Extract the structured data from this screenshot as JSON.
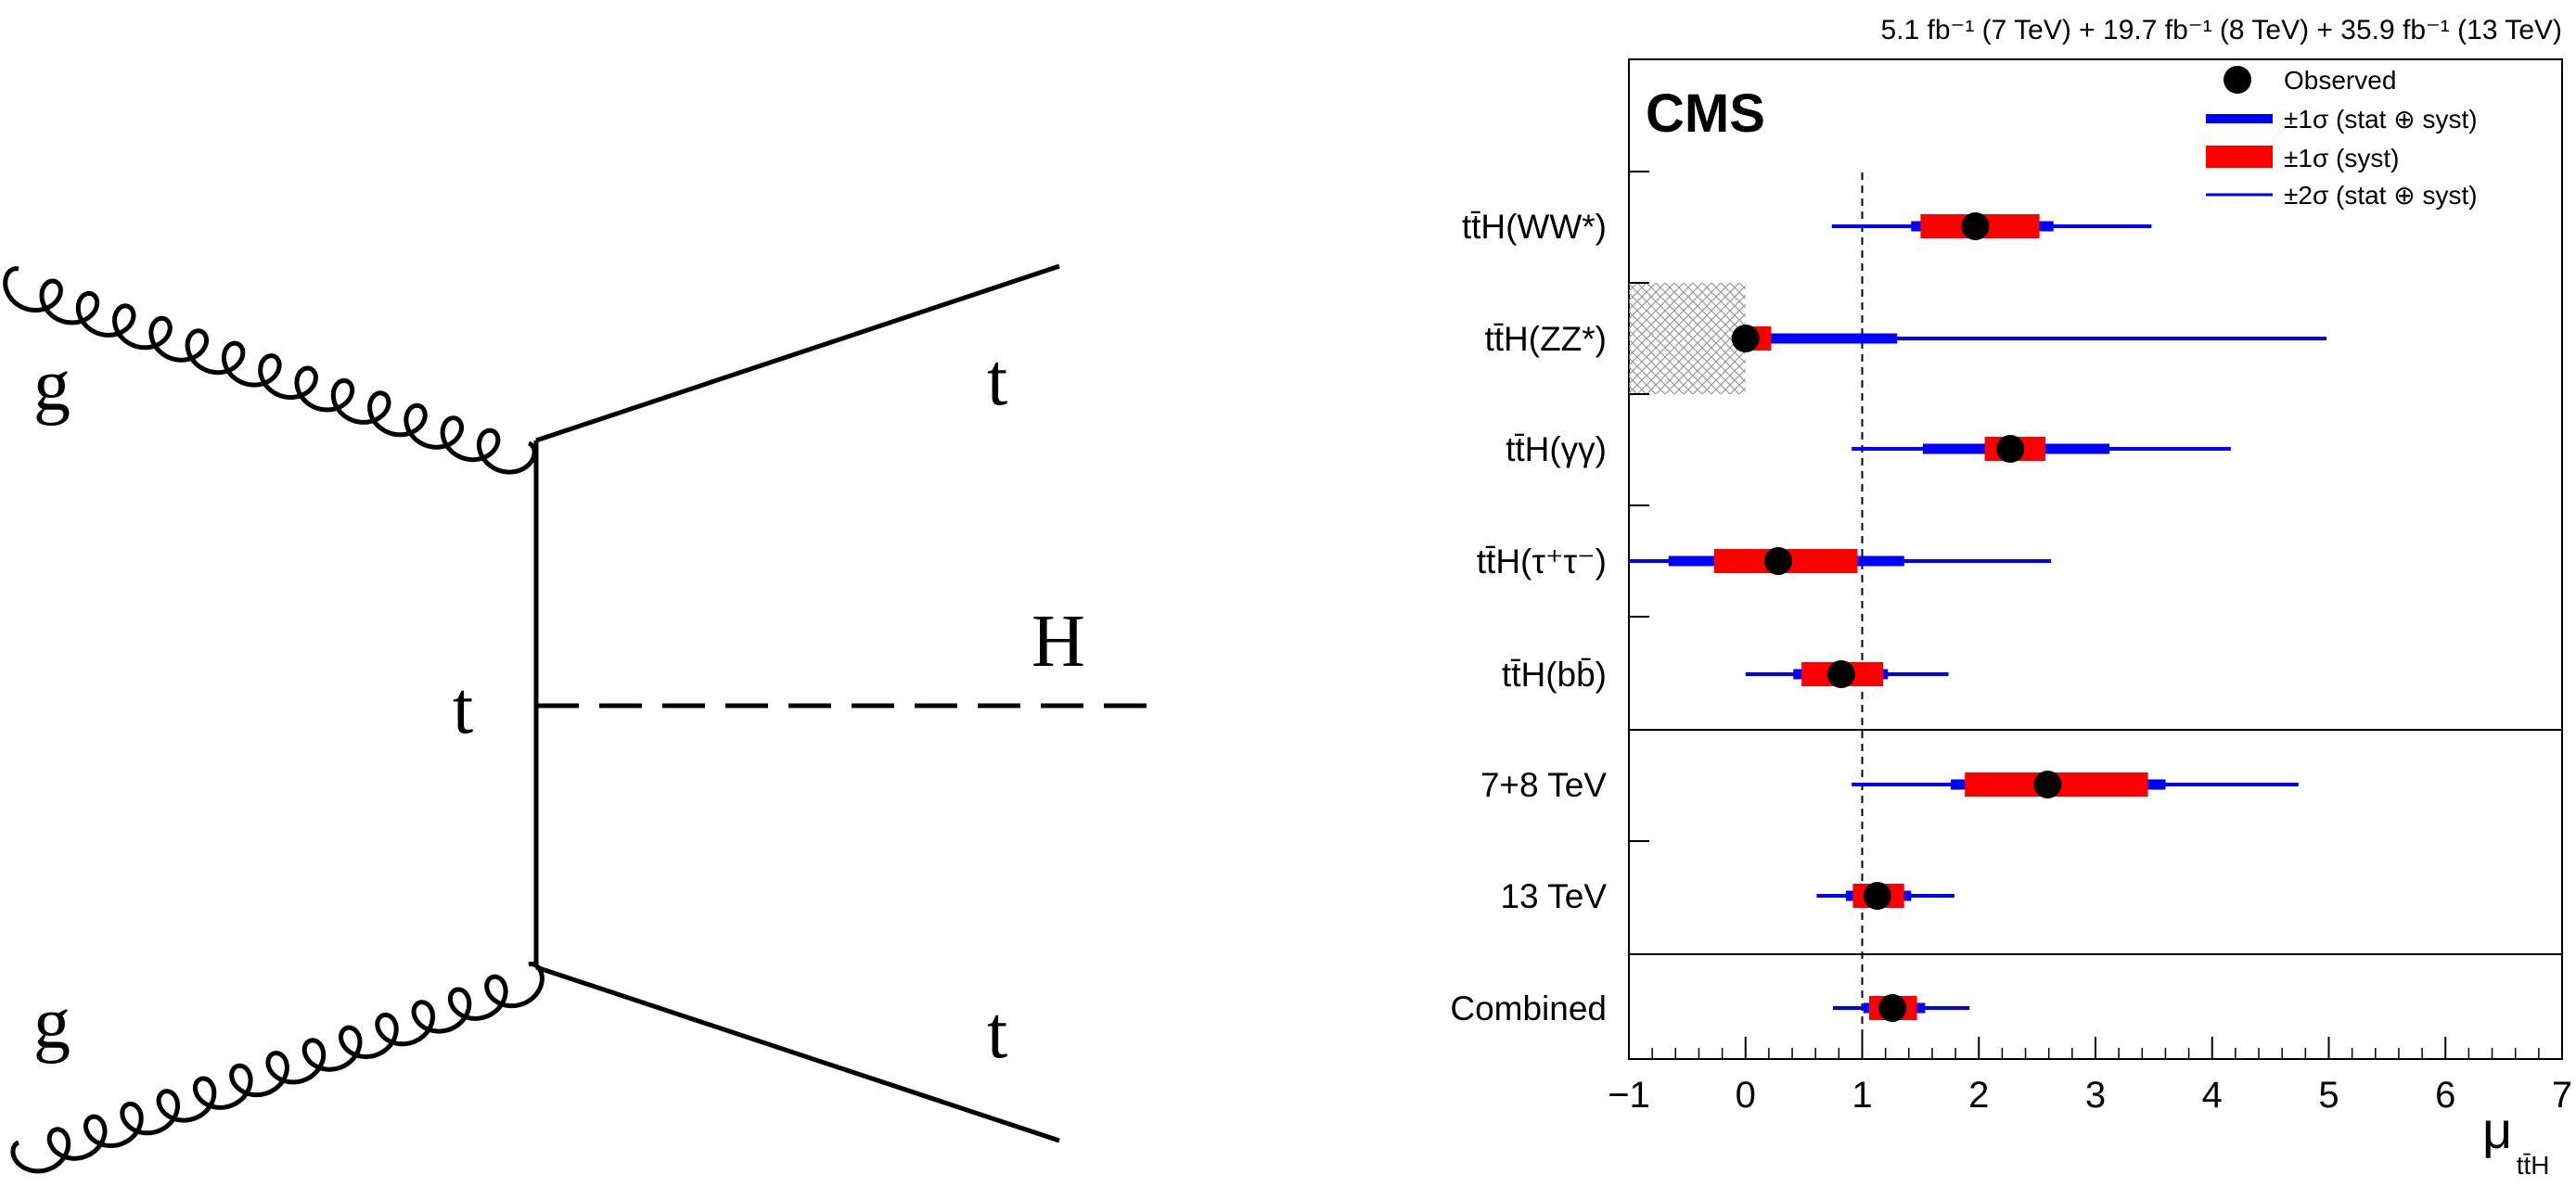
{
  "diagram": {
    "labels": {
      "gluon_top": "g",
      "gluon_bottom": "g",
      "top_out_upper": "t",
      "top_out_lower": "t",
      "top_propagator": "t",
      "higgs": "H"
    }
  },
  "chart_data": {
    "type": "forest",
    "lumi_label": "5.1 fb⁻¹ (7 TeV) + 19.7 fb⁻¹ (8 TeV) + 35.9 fb⁻¹ (13 TeV)",
    "experiment_label": "CMS",
    "xlabel": "μ",
    "xlabel_sub": "tt̄H",
    "xlim": [
      -1,
      7
    ],
    "ticks": [
      -1,
      0,
      1,
      2,
      3,
      4,
      5,
      6,
      7
    ],
    "tick_labels": [
      "−1",
      "0",
      "1",
      "2",
      "3",
      "4",
      "5",
      "6",
      "7"
    ],
    "reference_line": 1,
    "legend": {
      "observed": "Observed",
      "stat_syst_1sigma": "±1σ (stat ⊕ syst)",
      "syst_1sigma": "±1σ (syst)",
      "stat_syst_2sigma": "±2σ (stat ⊕ syst)"
    },
    "colors": {
      "total": "#0000ff",
      "syst": "#ff0000",
      "point": "#000000",
      "hatch": "#9a9a9a"
    },
    "rows": [
      {
        "label": "tt̄H(WW*)",
        "group": "channel",
        "value": 1.97,
        "err1": [
          1.42,
          2.64
        ],
        "syst1": [
          1.5,
          2.52
        ],
        "err2": [
          0.74,
          3.48
        ]
      },
      {
        "label": "tt̄H(ZZ*)",
        "group": "channel",
        "value": 0.0,
        "err1": [
          0.0,
          1.3
        ],
        "syst1": [
          0.0,
          0.22
        ],
        "err2": [
          0.0,
          4.98
        ],
        "excluded_below": 0
      },
      {
        "label": "tt̄H(γγ)",
        "group": "channel",
        "value": 2.27,
        "err1": [
          1.52,
          3.12
        ],
        "syst1": [
          2.05,
          2.57
        ],
        "err2": [
          0.91,
          4.16
        ]
      },
      {
        "label": "tt̄H(τ⁺τ⁻)",
        "group": "channel",
        "value": 0.28,
        "err1": [
          -0.66,
          1.36
        ],
        "syst1": [
          -0.27,
          0.96
        ],
        "err2": [
          -1.0,
          2.62
        ]
      },
      {
        "label": "tt̄H(bb̄)",
        "group": "channel",
        "value": 0.82,
        "err1": [
          0.41,
          1.22
        ],
        "syst1": [
          0.48,
          1.18
        ],
        "err2": [
          0.0,
          1.74
        ]
      },
      {
        "label": "7+8 TeV",
        "group": "energy",
        "value": 2.59,
        "err1": [
          1.76,
          3.6
        ],
        "syst1": [
          1.88,
          3.45
        ],
        "err2": [
          0.91,
          4.74
        ]
      },
      {
        "label": "13 TeV",
        "group": "energy",
        "value": 1.13,
        "err1": [
          0.86,
          1.42
        ],
        "syst1": [
          0.92,
          1.36
        ],
        "err2": [
          0.61,
          1.79
        ]
      },
      {
        "label": "Combined",
        "group": "combined",
        "value": 1.26,
        "err1": [
          1.01,
          1.54
        ],
        "syst1": [
          1.06,
          1.47
        ],
        "err2": [
          0.75,
          1.92
        ]
      }
    ]
  }
}
